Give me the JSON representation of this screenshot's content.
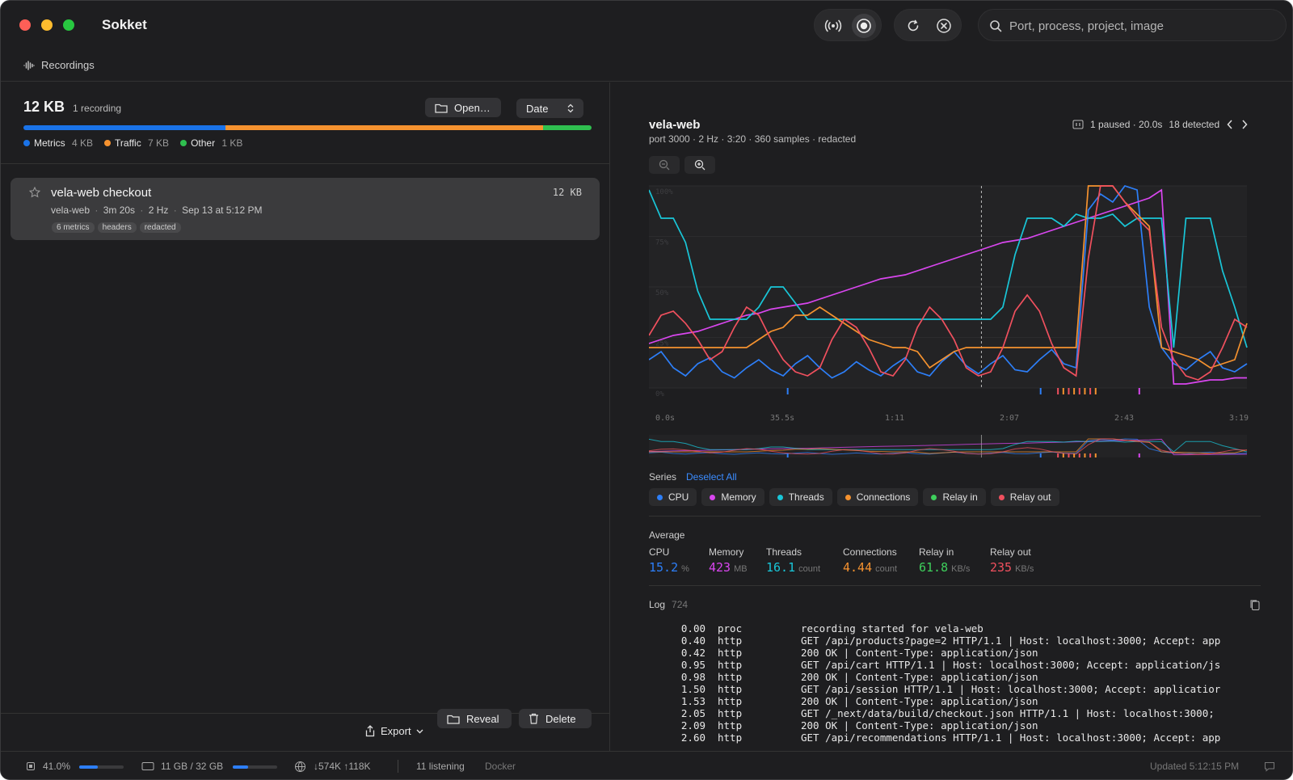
{
  "app": {
    "title": "Sokket"
  },
  "toolbar": {
    "search_placeholder": "Port, process, project, image"
  },
  "tabs": {
    "recordings": "Recordings"
  },
  "storage": {
    "total": "12 KB",
    "count": "1 recording",
    "open_label": "Open…",
    "sort_label": "Date",
    "segments": [
      {
        "name": "Metrics",
        "size": "4 KB",
        "fraction": 0.355,
        "color": "#1a73e8"
      },
      {
        "name": "Traffic",
        "size": "7 KB",
        "fraction": 0.56,
        "color": "#f5922f"
      },
      {
        "name": "Other",
        "size": "1 KB",
        "fraction": 0.085,
        "color": "#2fbf4f"
      }
    ]
  },
  "recording": {
    "title": "vela-web checkout",
    "size": "12 KB",
    "meta": [
      "vela-web",
      "3m 20s",
      "2 Hz",
      "Sep 13 at 5:12 PM"
    ],
    "tags": [
      "6 metrics",
      "headers",
      "redacted"
    ]
  },
  "left_footer": {
    "export": "Export",
    "reveal": "Reveal",
    "delete": "Delete"
  },
  "detail": {
    "name": "vela-web",
    "subtitle": "port 3000 · 2 Hz · 3:20 · 360 samples · redacted",
    "status": "1 paused · 20.0s",
    "detected": "18 detected"
  },
  "chart_data": {
    "type": "line",
    "y_ticks": [
      "100%",
      "75%",
      "50%",
      "25%",
      "0%"
    ],
    "x_ticks": [
      "0.0s",
      "35.5s",
      "1:11",
      "2:07",
      "2:43",
      "3:19"
    ],
    "ylim": [
      0,
      100
    ],
    "cursor_x": 0.556,
    "series": [
      {
        "name": "CPU",
        "color": "#2d7ff9",
        "values": [
          14,
          18,
          10,
          6,
          12,
          15,
          8,
          5,
          10,
          14,
          9,
          6,
          12,
          16,
          10,
          5,
          8,
          13,
          9,
          6,
          11,
          15,
          8,
          6,
          13,
          18,
          11,
          7,
          12,
          16,
          9,
          8,
          14,
          19,
          12,
          10,
          88,
          96,
          92,
          100,
          98,
          40,
          20,
          12,
          9,
          14,
          18,
          10,
          8,
          12
        ]
      },
      {
        "name": "Memory",
        "color": "#d946ef",
        "values": [
          22,
          24,
          26,
          27,
          28,
          30,
          32,
          34,
          36,
          37,
          39,
          40,
          41,
          42,
          44,
          46,
          48,
          50,
          52,
          54,
          55,
          56,
          58,
          60,
          62,
          64,
          66,
          68,
          70,
          72,
          73,
          74,
          76,
          78,
          80,
          82,
          84,
          86,
          88,
          90,
          92,
          94,
          98,
          2,
          2,
          3,
          4,
          4,
          5,
          5
        ]
      },
      {
        "name": "Threads",
        "color": "#19c6d8",
        "values": [
          98,
          84,
          84,
          72,
          48,
          34,
          34,
          34,
          34,
          40,
          50,
          50,
          42,
          34,
          34,
          34,
          34,
          34,
          34,
          34,
          34,
          34,
          34,
          34,
          34,
          34,
          34,
          34,
          34,
          40,
          66,
          84,
          84,
          84,
          80,
          86,
          84,
          84,
          86,
          80,
          84,
          84,
          84,
          20,
          84,
          84,
          84,
          58,
          40,
          20
        ]
      },
      {
        "name": "Connections",
        "color": "#f5922f",
        "values": [
          20,
          20,
          20,
          20,
          20,
          20,
          20,
          20,
          20,
          24,
          28,
          30,
          36,
          36,
          40,
          36,
          32,
          28,
          24,
          22,
          20,
          20,
          18,
          10,
          14,
          18,
          20,
          20,
          20,
          20,
          20,
          20,
          20,
          20,
          20,
          20,
          100,
          100,
          100,
          92,
          86,
          80,
          20,
          18,
          16,
          14,
          10,
          12,
          14,
          32
        ]
      },
      {
        "name": "Relay in",
        "color": "#3ecf5c",
        "values": []
      },
      {
        "name": "Relay out",
        "color": "#f0505e",
        "values": [
          26,
          36,
          38,
          32,
          24,
          14,
          18,
          30,
          40,
          36,
          24,
          14,
          8,
          6,
          10,
          24,
          34,
          30,
          20,
          8,
          6,
          14,
          30,
          40,
          34,
          24,
          10,
          6,
          8,
          20,
          38,
          46,
          38,
          22,
          10,
          6,
          64,
          100,
          100,
          92,
          84,
          78,
          30,
          14,
          6,
          4,
          8,
          20,
          34,
          30
        ]
      }
    ]
  },
  "series_panel": {
    "label": "Series",
    "deselect": "Deselect All"
  },
  "average": {
    "label": "Average",
    "items": [
      {
        "name": "CPU",
        "value": "15.2",
        "unit": "%",
        "color": "#2d7ff9"
      },
      {
        "name": "Memory",
        "value": "423",
        "unit": "MB",
        "color": "#d946ef"
      },
      {
        "name": "Threads",
        "value": "16.1",
        "unit": "count",
        "color": "#19c6d8"
      },
      {
        "name": "Connections",
        "value": "4.44",
        "unit": "count",
        "color": "#f5922f"
      },
      {
        "name": "Relay in",
        "value": "61.8",
        "unit": "KB/s",
        "color": "#3ecf5c"
      },
      {
        "name": "Relay out",
        "value": "235",
        "unit": "KB/s",
        "color": "#f0505e"
      }
    ]
  },
  "log": {
    "label": "Log",
    "count": "724",
    "rows": [
      {
        "t": "0.00",
        "k": "proc",
        "m": "recording started for vela-web"
      },
      {
        "t": "0.40",
        "k": "http",
        "m": "GET /api/products?page=2 HTTP/1.1 | Host: localhost:3000; Accept: app"
      },
      {
        "t": "0.42",
        "k": "http",
        "m": "200 OK | Content-Type: application/json"
      },
      {
        "t": "0.95",
        "k": "http",
        "m": "GET /api/cart HTTP/1.1 | Host: localhost:3000; Accept: application/js"
      },
      {
        "t": "0.98",
        "k": "http",
        "m": "200 OK | Content-Type: application/json"
      },
      {
        "t": "1.50",
        "k": "http",
        "m": "GET /api/session HTTP/1.1 | Host: localhost:3000; Accept: applicatior"
      },
      {
        "t": "1.53",
        "k": "http",
        "m": "200 OK | Content-Type: application/json"
      },
      {
        "t": "2.05",
        "k": "http",
        "m": "GET /_next/data/build/checkout.json HTTP/1.1 | Host: localhost:3000;"
      },
      {
        "t": "2.09",
        "k": "http",
        "m": "200 OK | Content-Type: application/json"
      },
      {
        "t": "2.60",
        "k": "http",
        "m": "GET /api/recommendations HTTP/1.1 | Host: localhost:3000; Accept: app"
      }
    ]
  },
  "statusbar": {
    "cpu": "41.0%",
    "cpu_level": 0.41,
    "mem": "11 GB / 32 GB",
    "mem_level": 0.34,
    "net": "↓574K ↑118K",
    "listening": "11 listening",
    "docker": "Docker",
    "updated": "Updated 5:12:15 PM"
  }
}
